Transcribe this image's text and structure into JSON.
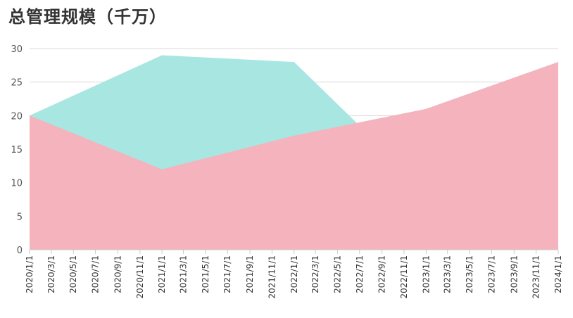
{
  "chart_data": {
    "type": "area",
    "title": "总管理规模（千万）",
    "x": [
      "2020/1/1",
      "2021/1/1",
      "2022/1/1",
      "2022/7/1",
      "2023/1/1",
      "2024/1/1"
    ],
    "series": [
      {
        "values": [
          20,
          29,
          28,
          18.5,
          21,
          28
        ],
        "color": "#a8e6e1"
      },
      {
        "values": [
          20,
          12,
          17,
          19,
          21,
          28
        ],
        "color": "#f4b3bd"
      }
    ],
    "x_ticks": [
      "2020/1/1",
      "2020/3/1",
      "2020/5/1",
      "2020/7/1",
      "2020/9/1",
      "2020/11/1",
      "2021/1/1",
      "2021/3/1",
      "2021/5/1",
      "2021/7/1",
      "2021/9/1",
      "2021/11/1",
      "2022/1/1",
      "2022/3/1",
      "2022/5/1",
      "2022/7/1",
      "2022/9/1",
      "2022/11/1",
      "2023/1/1",
      "2023/3/1",
      "2023/5/1",
      "2023/7/1",
      "2023/9/1",
      "2023/11/1",
      "2024/1/1"
    ],
    "y_ticks": [
      0,
      5,
      10,
      15,
      20,
      25,
      30
    ],
    "ylim": [
      0,
      30
    ],
    "grid": true
  }
}
